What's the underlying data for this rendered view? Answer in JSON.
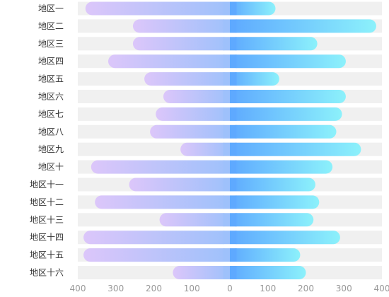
{
  "chart_data": {
    "type": "bar",
    "orientation": "horizontal",
    "diverging": true,
    "categories": [
      "地区一",
      "地区二",
      "地区三",
      "地区四",
      "地区五",
      "地区六",
      "地区七",
      "地区八",
      "地区九",
      "地区十",
      "地区十一",
      "地区十二",
      "地区十三",
      "地区十四",
      "地区十五",
      "地区十六"
    ],
    "series": [
      {
        "values": [
          380,
          255,
          255,
          320,
          225,
          175,
          195,
          210,
          130,
          365,
          265,
          355,
          185,
          385,
          385,
          150
        ],
        "direction": "left"
      },
      {
        "values": [
          120,
          385,
          230,
          305,
          130,
          305,
          295,
          280,
          345,
          270,
          225,
          235,
          220,
          290,
          185,
          200
        ],
        "direction": "right"
      }
    ],
    "xlim": [
      -400,
      400
    ],
    "x_ticks": [
      -400,
      -300,
      -200,
      -100,
      0,
      100,
      200,
      300,
      400
    ],
    "x_tick_labels": [
      "400",
      "300",
      "200",
      "100",
      "0",
      "100",
      "200",
      "300",
      "400"
    ],
    "title": "",
    "xlabel": "",
    "ylabel": "",
    "grid": false,
    "legend": "none",
    "colors": {
      "left_gradient": [
        "#dcc6fa",
        "#9ec1fb"
      ],
      "right_gradient": [
        "#5ea9ff",
        "#8cf1fb"
      ],
      "background_band": "#f0f0f0",
      "tick_text": "#999999",
      "category_text": "#333333"
    }
  }
}
